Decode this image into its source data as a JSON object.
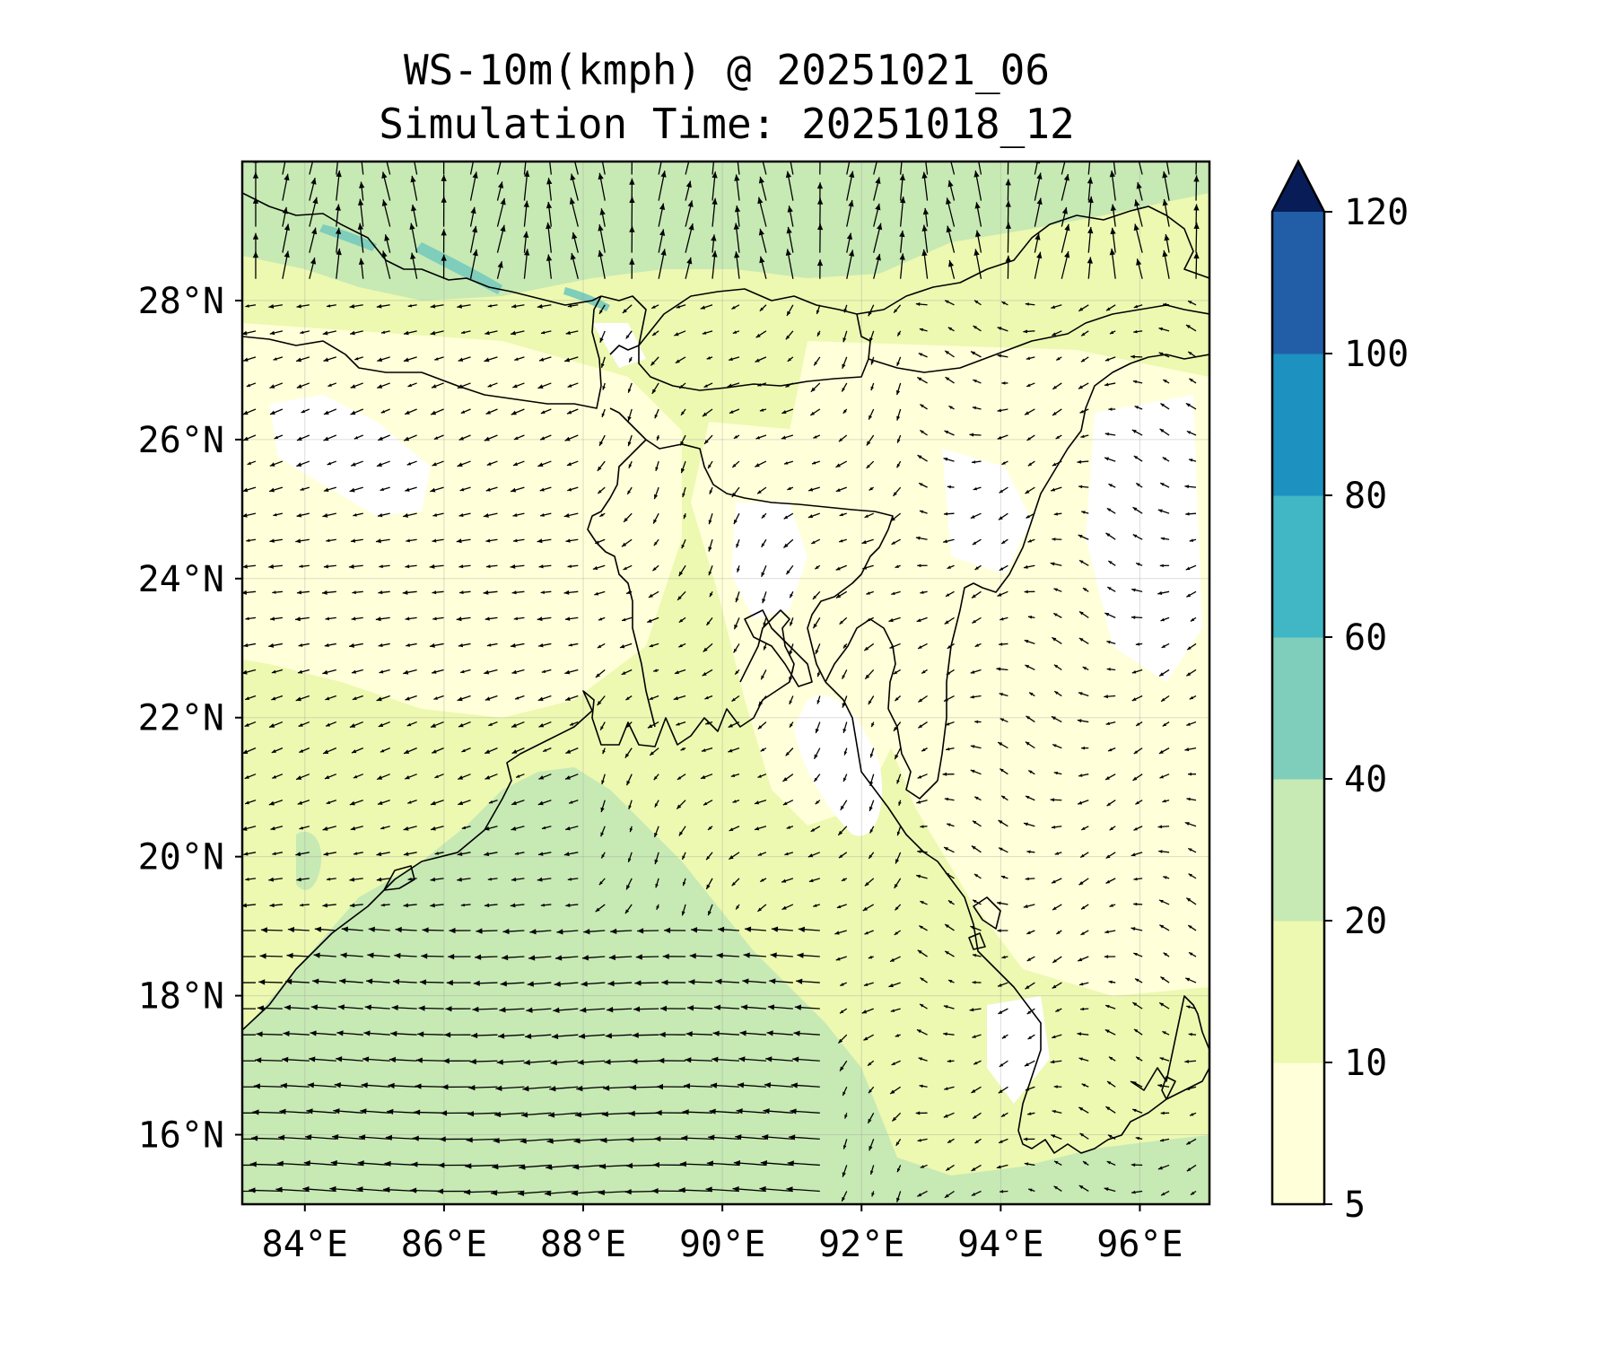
{
  "title": {
    "line1": "WS-10m(kmph) @ 20251021_06",
    "line2": "Simulation Time: 20251018_12"
  },
  "map": {
    "projection": "PlateCarree",
    "lon_range": [
      83.1,
      97.0
    ],
    "lat_range": [
      15.0,
      30.0
    ],
    "x_ticks": [
      84,
      86,
      88,
      90,
      92,
      94,
      96
    ],
    "x_tick_labels": [
      "84°E",
      "86°E",
      "88°E",
      "90°E",
      "92°E",
      "94°E",
      "96°E"
    ],
    "y_ticks": [
      16,
      18,
      20,
      22,
      24,
      26,
      28
    ],
    "y_tick_labels": [
      "16°N",
      "18°N",
      "20°N",
      "22°N",
      "24°N",
      "26°N",
      "28°N"
    ],
    "gridlines": true,
    "layers": [
      "filled wind-speed contours",
      "10m wind vectors (quiver)",
      "coastlines and country borders"
    ]
  },
  "colorbar": {
    "levels": [
      5,
      10,
      20,
      40,
      60,
      80,
      100,
      120
    ],
    "tick_labels": [
      "5",
      "10",
      "20",
      "40",
      "60",
      "80",
      "100",
      "120"
    ],
    "colors": [
      "#ffffd9",
      "#edf8b1",
      "#c7e9b4",
      "#7fcdbb",
      "#41b6c4",
      "#1d91c0",
      "#225ea8",
      "#0c2c84"
    ],
    "extend": "max",
    "extend_color": "#081d58"
  },
  "palette": {
    "very_calm": "#ffffff",
    "calm": "#ffffd9",
    "light": "#edf8b1",
    "moderate": "#c7e9b4",
    "fresh": "#7fcdbb",
    "coast": "#000000",
    "arrow": "#000000"
  }
}
